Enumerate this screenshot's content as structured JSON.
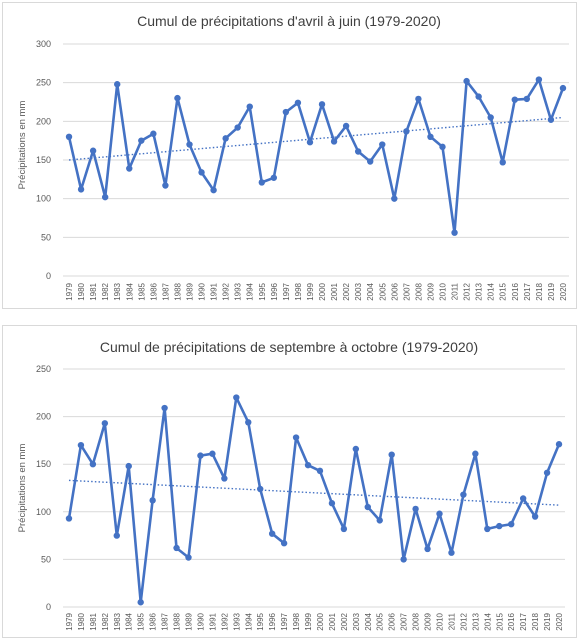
{
  "colors": {
    "series": "#4472c4",
    "grid": "#d9d9d9",
    "text": "#595959"
  },
  "chart_data": [
    {
      "type": "line",
      "title": "Cumul de précipitations d'avril à juin (1979-2020)",
      "ylabel": "Précipitations en mm",
      "xlabel": "",
      "ylim": [
        0,
        300
      ],
      "yticks": [
        0,
        50,
        100,
        150,
        200,
        250,
        300
      ],
      "grid": true,
      "legend": "none",
      "trendline": {
        "type": "linear",
        "start": 150,
        "end": 205
      },
      "categories": [
        "1979",
        "1980",
        "1981",
        "1982",
        "1983",
        "1984",
        "1985",
        "1986",
        "1987",
        "1988",
        "1989",
        "1990",
        "1991",
        "1992",
        "1993",
        "1994",
        "1995",
        "1996",
        "1997",
        "1998",
        "1999",
        "2000",
        "2001",
        "2002",
        "2003",
        "2004",
        "2005",
        "2006",
        "2007",
        "2008",
        "2009",
        "2010",
        "2011",
        "2012",
        "2013",
        "2014",
        "2015",
        "2016",
        "2017",
        "2018",
        "2019",
        "2020"
      ],
      "series": [
        {
          "values": [
            180,
            112,
            162,
            102,
            248,
            139,
            175,
            184,
            117,
            230,
            170,
            134,
            111,
            178,
            192,
            219,
            121,
            127,
            212,
            224,
            173,
            222,
            174,
            194,
            161,
            148,
            170,
            100,
            187,
            229,
            180,
            167,
            56,
            252,
            232,
            205,
            147,
            228,
            229,
            254,
            202,
            243
          ]
        }
      ]
    },
    {
      "type": "line",
      "title": "Cumul de précipitations de septembre à octobre (1979-2020)",
      "ylabel": "Précipitations en mm",
      "xlabel": "",
      "ylim": [
        0,
        250
      ],
      "yticks": [
        0,
        50,
        100,
        150,
        200,
        250
      ],
      "grid": true,
      "legend": "none",
      "trendline": {
        "type": "linear",
        "start": 133,
        "end": 107
      },
      "categories": [
        "1979",
        "1980",
        "1981",
        "1982",
        "1983",
        "1984",
        "1985",
        "1986",
        "1987",
        "1988",
        "1989",
        "1990",
        "1991",
        "1992",
        "1993",
        "1994",
        "1995",
        "1996",
        "1997",
        "1998",
        "1999",
        "2000",
        "2001",
        "2002",
        "2003",
        "2004",
        "2005",
        "2006",
        "2007",
        "2008",
        "2009",
        "2010",
        "2011",
        "2012",
        "2013",
        "2014",
        "2015",
        "2016",
        "2017",
        "2018",
        "2019",
        "2020"
      ],
      "series": [
        {
          "values": [
            93,
            170,
            150,
            193,
            75,
            148,
            5,
            112,
            209,
            62,
            52,
            159,
            161,
            135,
            220,
            194,
            124,
            77,
            67,
            178,
            149,
            143,
            109,
            82,
            166,
            105,
            91,
            160,
            50,
            103,
            61,
            98,
            57,
            118,
            161,
            82,
            85,
            87,
            114,
            95,
            141,
            171
          ]
        }
      ]
    }
  ]
}
